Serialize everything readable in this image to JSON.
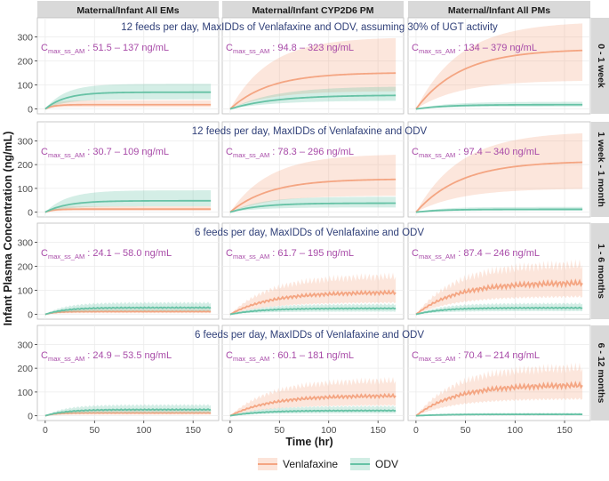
{
  "figure": {
    "y_axis_label": "Infant Plasma Concentration (ng/mL)",
    "x_axis_label": "Time (hr)",
    "legend": [
      {
        "name": "Venlafaxine",
        "color": "#F4A582"
      },
      {
        "name": "ODV",
        "color": "#66C2A5"
      }
    ],
    "cmax_prefix": "C",
    "cmax_subscript": "max_ss_AM",
    "column_headers": [
      "Maternal/Infant All EMs",
      "Maternal/Infant CYP2D6 PM",
      "Maternal/Infant All PMs"
    ],
    "row_headers": [
      "0 - 1 week",
      "1 week - 1 month",
      "1 - 6 months",
      "6 - 12 months"
    ],
    "row_titles": [
      "12 feeds per day, MaxIDDs of Venlafaxine and ODV, assuming 30% of UGT activity",
      "12 feeds per day, MaxIDDs of Venlafaxine and ODV",
      "6 feeds per day, MaxIDDs of Venlafaxine and ODV",
      "6 feeds per day, MaxIDDs of Venlafaxine and ODV"
    ],
    "cmax_ranges": [
      [
        " : 51.5 – 137 ng/mL",
        " : 94.8 – 323 ng/mL",
        " : 134 – 379 ng/mL"
      ],
      [
        " : 30.7 – 109 ng/mL",
        " : 78.3 – 296 ng/mL",
        " : 97.4 – 340 ng/mL"
      ],
      [
        " : 24.1 – 58.0 ng/mL",
        " : 61.7 – 195 ng/mL",
        " : 87.4 – 246 ng/mL"
      ],
      [
        " : 24.9 – 53.5 ng/mL",
        " : 60.1 – 181 ng/mL",
        " : 70.4 – 214 ng/mL"
      ]
    ]
  },
  "chart_data": {
    "type": "line",
    "facet_columns": [
      "Maternal/Infant All EMs",
      "Maternal/Infant CYP2D6 PM",
      "Maternal/Infant All PMs"
    ],
    "facet_rows": [
      "0 - 1 week",
      "1 week - 1 month",
      "1 - 6 months",
      "6 - 12 months"
    ],
    "xlabel": "Time (hr)",
    "ylabel": "Infant Plasma Concentration (ng/mL)",
    "xlim": [
      -8,
      176
    ],
    "ylim": [
      -20,
      380
    ],
    "xticks": [
      0,
      50,
      100,
      150
    ],
    "yticks": [
      0,
      100,
      200,
      300
    ],
    "grid": true,
    "legend_position": "bottom",
    "series_names": [
      "Venlafaxine",
      "ODV"
    ],
    "panels": [
      {
        "row": 0,
        "col": 0,
        "oscillating": false,
        "series": [
          {
            "name": "Venlafaxine",
            "steady": 18,
            "lower": 8,
            "upper": 36,
            "tau": 8
          },
          {
            "name": "ODV",
            "steady": 70,
            "lower": 40,
            "upper": 105,
            "tau": 20
          }
        ]
      },
      {
        "row": 0,
        "col": 1,
        "oscillating": false,
        "series": [
          {
            "name": "Venlafaxine",
            "steady": 152,
            "lower": 75,
            "upper": 300,
            "tau": 40
          },
          {
            "name": "ODV",
            "steady": 58,
            "lower": 35,
            "upper": 95,
            "tau": 45
          }
        ]
      },
      {
        "row": 0,
        "col": 2,
        "oscillating": false,
        "series": [
          {
            "name": "Venlafaxine",
            "steady": 250,
            "lower": 120,
            "upper": 365,
            "tau": 45
          },
          {
            "name": "ODV",
            "steady": 18,
            "lower": 10,
            "upper": 30,
            "tau": 30
          }
        ]
      },
      {
        "row": 1,
        "col": 0,
        "oscillating": false,
        "series": [
          {
            "name": "Venlafaxine",
            "steady": 13,
            "lower": 6,
            "upper": 25,
            "tau": 8
          },
          {
            "name": "ODV",
            "steady": 48,
            "lower": 25,
            "upper": 92,
            "tau": 22
          }
        ]
      },
      {
        "row": 1,
        "col": 1,
        "oscillating": false,
        "series": [
          {
            "name": "Venlafaxine",
            "steady": 140,
            "lower": 70,
            "upper": 245,
            "tau": 40
          },
          {
            "name": "ODV",
            "steady": 38,
            "lower": 20,
            "upper": 65,
            "tau": 30
          }
        ]
      },
      {
        "row": 1,
        "col": 2,
        "oscillating": false,
        "series": [
          {
            "name": "Venlafaxine",
            "steady": 215,
            "lower": 100,
            "upper": 340,
            "tau": 45
          },
          {
            "name": "ODV",
            "steady": 12,
            "lower": 6,
            "upper": 22,
            "tau": 25
          }
        ]
      },
      {
        "row": 2,
        "col": 0,
        "oscillating": true,
        "series": [
          {
            "name": "Venlafaxine",
            "steady": 12,
            "lower": 5,
            "upper": 22,
            "tau": 10
          },
          {
            "name": "ODV",
            "steady": 28,
            "lower": 14,
            "upper": 48,
            "tau": 20
          }
        ]
      },
      {
        "row": 2,
        "col": 1,
        "oscillating": true,
        "series": [
          {
            "name": "Venlafaxine",
            "steady": 92,
            "lower": 50,
            "upper": 160,
            "tau": 40
          },
          {
            "name": "ODV",
            "steady": 25,
            "lower": 12,
            "upper": 42,
            "tau": 30
          }
        ]
      },
      {
        "row": 2,
        "col": 2,
        "oscillating": true,
        "series": [
          {
            "name": "Venlafaxine",
            "steady": 132,
            "lower": 75,
            "upper": 210,
            "tau": 40
          },
          {
            "name": "ODV",
            "steady": 27,
            "lower": 14,
            "upper": 45,
            "tau": 25
          }
        ]
      },
      {
        "row": 3,
        "col": 0,
        "oscillating": true,
        "series": [
          {
            "name": "Venlafaxine",
            "steady": 12,
            "lower": 5,
            "upper": 22,
            "tau": 10
          },
          {
            "name": "ODV",
            "steady": 26,
            "lower": 13,
            "upper": 45,
            "tau": 20
          }
        ]
      },
      {
        "row": 3,
        "col": 1,
        "oscillating": true,
        "series": [
          {
            "name": "Venlafaxine",
            "steady": 85,
            "lower": 45,
            "upper": 150,
            "tau": 40
          },
          {
            "name": "ODV",
            "steady": 22,
            "lower": 11,
            "upper": 40,
            "tau": 30
          }
        ]
      },
      {
        "row": 3,
        "col": 2,
        "oscillating": true,
        "series": [
          {
            "name": "Venlafaxine",
            "steady": 130,
            "lower": 72,
            "upper": 205,
            "tau": 40
          },
          {
            "name": "ODV",
            "steady": 6,
            "lower": 3,
            "upper": 12,
            "tau": 25
          }
        ]
      }
    ]
  }
}
